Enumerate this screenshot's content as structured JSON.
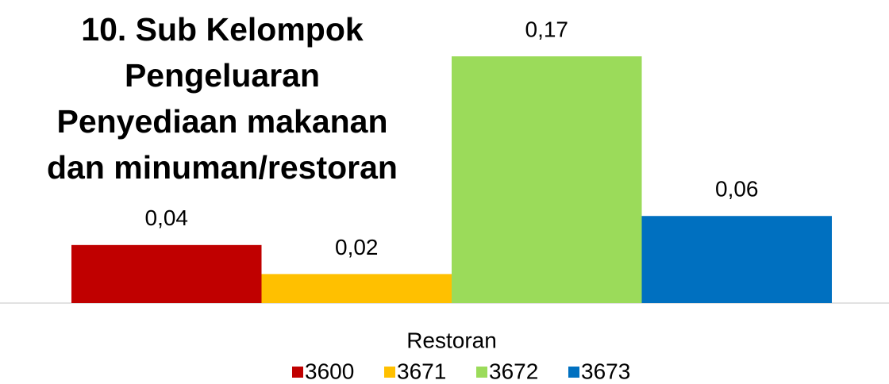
{
  "chart_data": {
    "type": "bar",
    "title": "10. Sub Kelompok\nPengeluaran\nPenyediaan makanan\ndan minuman/restoran",
    "categories": [
      "Restoran"
    ],
    "series": [
      {
        "name": "3600",
        "color": "#c00000",
        "values": [
          0.04
        ],
        "value_labels": [
          "0,04"
        ]
      },
      {
        "name": "3671",
        "color": "#ffc000",
        "values": [
          0.02
        ],
        "value_labels": [
          "0,02"
        ]
      },
      {
        "name": "3672",
        "color": "#9bdb5a",
        "values": [
          0.17
        ],
        "value_labels": [
          "0,17"
        ]
      },
      {
        "name": "3673",
        "color": "#0070c0",
        "values": [
          0.06
        ],
        "value_labels": [
          "0,06"
        ]
      }
    ]
  }
}
